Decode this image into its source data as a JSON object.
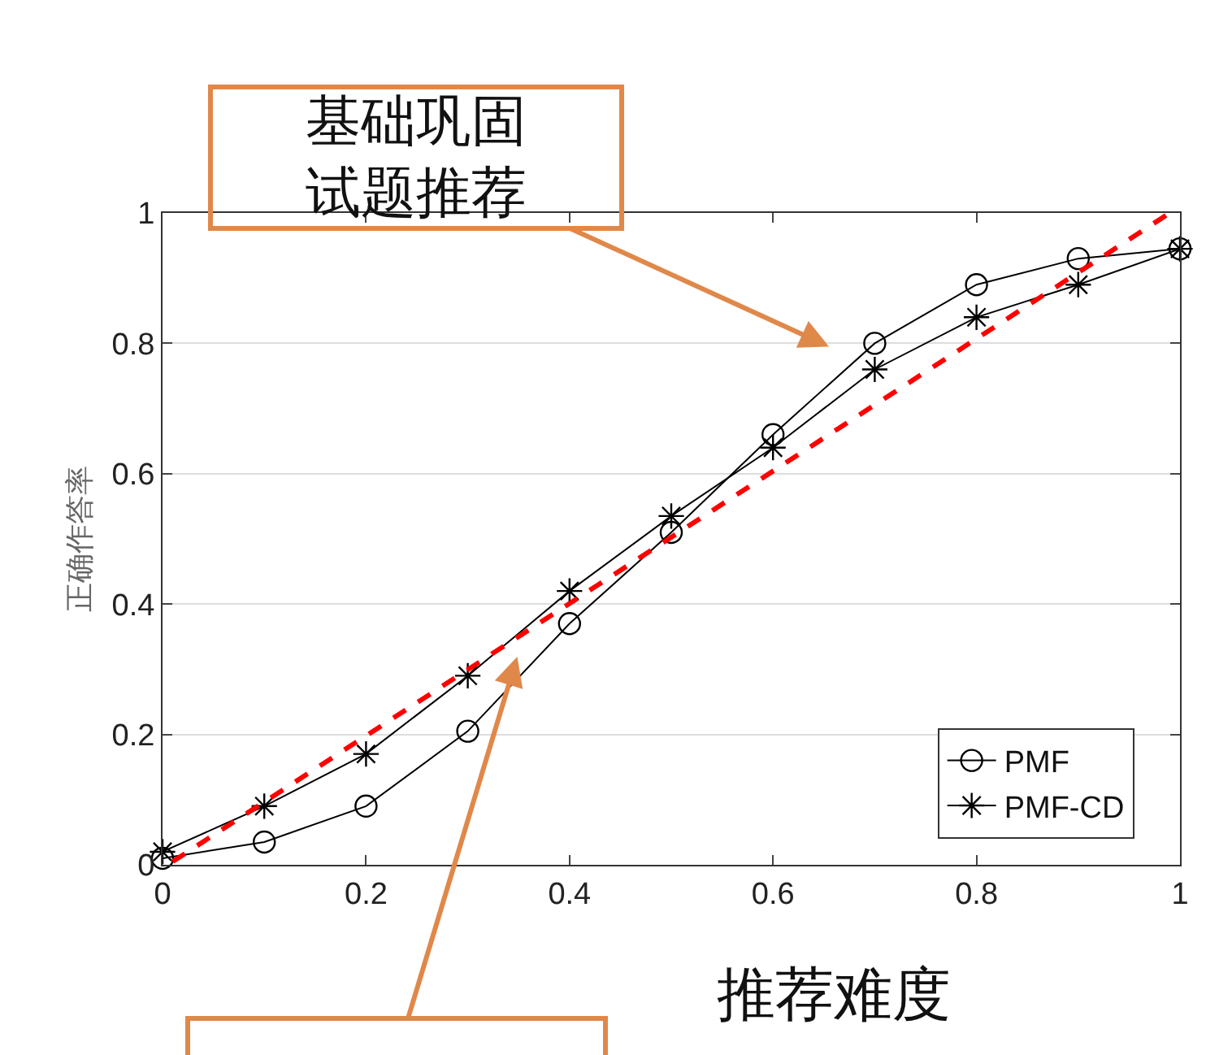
{
  "chart_data": {
    "type": "line",
    "xlabel": "推荐难度",
    "ylabel": "正确作答率",
    "x": [
      0,
      0.1,
      0.2,
      0.3,
      0.4,
      0.5,
      0.6,
      0.7,
      0.8,
      0.9,
      1.0
    ],
    "series": [
      {
        "name": "PMF",
        "color": "#000000",
        "marker": "circle",
        "values": [
          0.01,
          0.035,
          0.09,
          0.205,
          0.37,
          0.51,
          0.66,
          0.8,
          0.89,
          0.93,
          0.945
        ]
      },
      {
        "name": "PMF-CD",
        "color": "#000000",
        "marker": "cross",
        "values": [
          0.02,
          0.09,
          0.17,
          0.29,
          0.42,
          0.535,
          0.64,
          0.76,
          0.84,
          0.89,
          0.945
        ]
      },
      {
        "type": "line",
        "color": "#ff0000",
        "line_style": "dashed",
        "marker": "none",
        "x": [
          0.01,
          0.99
        ],
        "values": [
          0.005,
          1.0
        ]
      }
    ],
    "annotations": [
      "基础巩固试题推荐"
    ],
    "xlim": [
      0,
      1
    ],
    "ylim": [
      0,
      1
    ],
    "xticks": [
      0,
      0.2,
      0.4,
      0.6,
      0.8,
      1
    ],
    "yticks": [
      0,
      0.2,
      0.4,
      0.6,
      0.8,
      1
    ],
    "grid": "y",
    "legend": "bottom right",
    "line_style": "solid"
  }
}
